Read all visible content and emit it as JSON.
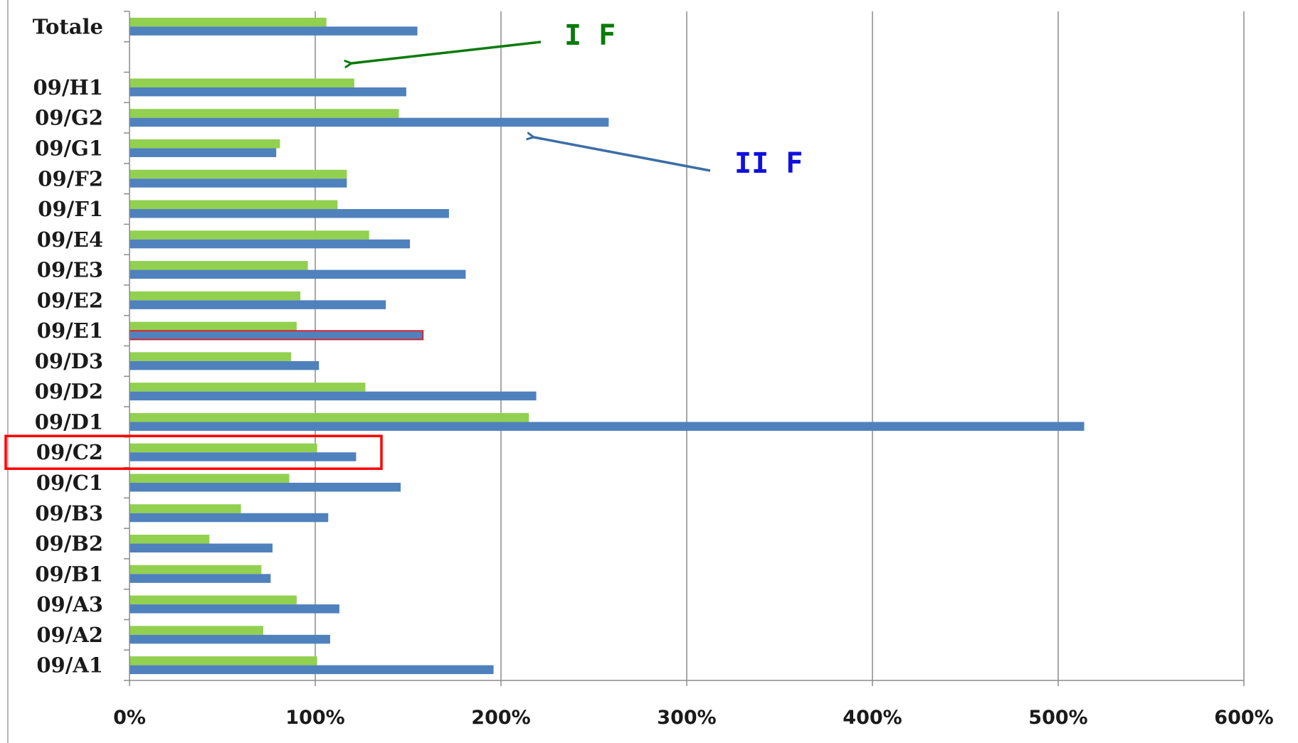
{
  "chart_data": {
    "type": "bar",
    "orientation": "horizontal",
    "categories": [
      "09/A1",
      "09/A2",
      "09/A3",
      "09/B1",
      "09/B2",
      "09/B3",
      "09/C1",
      "09/C2",
      "09/D1",
      "09/D2",
      "09/D3",
      "09/E1",
      "09/E2",
      "09/E3",
      "09/E4",
      "09/F1",
      "09/F2",
      "09/G1",
      "09/G2",
      "09/H1",
      "",
      "Totale"
    ],
    "series": [
      {
        "color": "#92d050",
        "values": [
          101,
          72,
          90,
          71,
          43,
          60,
          86,
          101,
          215,
          127,
          87,
          90,
          92,
          96,
          129,
          112,
          117,
          81,
          145,
          121,
          null,
          106
        ]
      },
      {
        "color": "#4f81bd",
        "values": [
          196,
          108,
          113,
          76,
          77,
          107,
          146,
          122,
          514,
          219,
          102,
          158,
          138,
          181,
          151,
          172,
          117,
          79,
          258,
          149,
          null,
          155
        ]
      }
    ],
    "xlim": [
      0,
      600
    ],
    "x_ticks": [
      "0%",
      "100%",
      "200%",
      "300%",
      "400%",
      "500%",
      "600%"
    ],
    "grid": "vertical",
    "annotations": [
      {
        "text": "I F",
        "color": "#0a7a0a",
        "points_to_series": 0
      },
      {
        "text": "II F",
        "color": "#1010e0",
        "points_to_series": 1
      }
    ],
    "highlight": {
      "category": "09/C2",
      "color": "#ff0000"
    },
    "highlight_bar": {
      "category": "09/E1",
      "series": 1,
      "outline_color": "#ff0000"
    }
  }
}
